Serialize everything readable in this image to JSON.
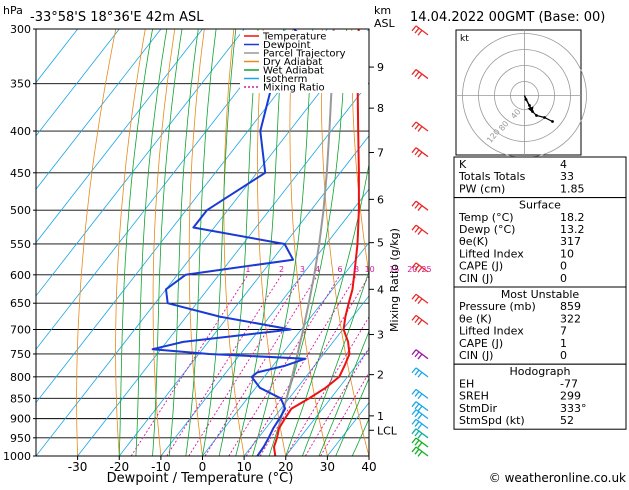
{
  "header": {
    "location": "-33°58'S  18°36'E  42m  ASL",
    "datetime": "14.04.2022  00GMT  (Base: 00)"
  },
  "credit": "© weatheronline.co.uk",
  "chart_data": {
    "type": "skew-t",
    "y_unit_left": "hPa",
    "y_unit_right": "km\nASL",
    "xlabel": "Dewpoint / Temperature (°C)",
    "mixing_ratio_label": "Mixing Ratio (g/kg)",
    "pressure_levels": [
      300,
      350,
      400,
      450,
      500,
      550,
      600,
      650,
      700,
      750,
      800,
      850,
      900,
      950,
      1000
    ],
    "x_ticks": [
      -30,
      -20,
      -10,
      0,
      10,
      20,
      30,
      40
    ],
    "xlim": [
      -40,
      40
    ],
    "ylim_hpa": [
      1000,
      300
    ],
    "km_ticks": [
      {
        "label": "9",
        "p": 334
      },
      {
        "label": "8",
        "p": 375
      },
      {
        "label": "7",
        "p": 425
      },
      {
        "label": "6",
        "p": 485
      },
      {
        "label": "5",
        "p": 548
      },
      {
        "label": "4",
        "p": 625
      },
      {
        "label": "3",
        "p": 710
      },
      {
        "label": "2",
        "p": 795
      },
      {
        "label": "1",
        "p": 893
      },
      {
        "label": "LCL",
        "p": 930
      }
    ],
    "mixing_ratio_values": [
      "1",
      "2",
      "3",
      "4",
      "6",
      "8",
      "10",
      "15",
      "20",
      "25"
    ],
    "legend": {
      "position": "top-left",
      "items": [
        {
          "name": "Temperature",
          "color": "#ee1111"
        },
        {
          "name": "Dewpoint",
          "color": "#1a3ad6"
        },
        {
          "name": "Parcel Trajectory",
          "color": "#999999"
        },
        {
          "name": "Dry Adiabat",
          "color": "#e88a1a"
        },
        {
          "name": "Wet Adiabat",
          "color": "#0fa32f"
        },
        {
          "name": "Isotherm",
          "color": "#1aa6e6"
        },
        {
          "name": "Mixing Ratio",
          "color": "#d6199c"
        }
      ]
    },
    "temperature": [
      [
        1000,
        17.5
      ],
      [
        975,
        15.5
      ],
      [
        950,
        14.5
      ],
      [
        925,
        13.2
      ],
      [
        900,
        12.8
      ],
      [
        875,
        12.5
      ],
      [
        850,
        14.8
      ],
      [
        825,
        16.8
      ],
      [
        800,
        18.0
      ],
      [
        775,
        17.2
      ],
      [
        750,
        16.2
      ],
      [
        725,
        13.6
      ],
      [
        700,
        10.2
      ],
      [
        675,
        8.2
      ],
      [
        650,
        6.5
      ],
      [
        625,
        4.8
      ],
      [
        600,
        2.5
      ],
      [
        550,
        -2.5
      ],
      [
        500,
        -8.5
      ],
      [
        450,
        -15.5
      ],
      [
        400,
        -23.5
      ],
      [
        350,
        -32.5
      ],
      [
        300,
        -42.5
      ]
    ],
    "dewpoint": [
      [
        1000,
        13.2
      ],
      [
        975,
        13.0
      ],
      [
        950,
        12.5
      ],
      [
        925,
        11.8
      ],
      [
        900,
        11.5
      ],
      [
        875,
        11.0
      ],
      [
        850,
        8.0
      ],
      [
        825,
        1.0
      ],
      [
        800,
        -3.0
      ],
      [
        790,
        -2.5
      ],
      [
        775,
        3.0
      ],
      [
        760,
        6.5
      ],
      [
        750,
        -17.5
      ],
      [
        740,
        -32.0
      ],
      [
        725,
        -26.0
      ],
      [
        700,
        -2.5
      ],
      [
        675,
        -22.0
      ],
      [
        650,
        -37.0
      ],
      [
        625,
        -40.0
      ],
      [
        600,
        -38.0
      ],
      [
        575,
        -15.0
      ],
      [
        550,
        -20.0
      ],
      [
        525,
        -45.0
      ],
      [
        500,
        -45.0
      ],
      [
        450,
        -38.0
      ],
      [
        400,
        -47.0
      ],
      [
        350,
        -53.0
      ],
      [
        325,
        -46.0
      ],
      [
        300,
        -58.0
      ]
    ],
    "parcel": [
      [
        930,
        13.3
      ],
      [
        900,
        11.8
      ],
      [
        850,
        9.4
      ],
      [
        800,
        6.7
      ],
      [
        750,
        3.7
      ],
      [
        700,
        0.5
      ],
      [
        650,
        -3.1
      ],
      [
        600,
        -7.1
      ],
      [
        550,
        -11.7
      ],
      [
        500,
        -17.0
      ],
      [
        450,
        -23.2
      ],
      [
        400,
        -30.4
      ],
      [
        350,
        -38.7
      ],
      [
        300,
        -48.5
      ]
    ],
    "wind_barbs": [
      {
        "p": 305,
        "color": "#e82a2a"
      },
      {
        "p": 345,
        "color": "#e82a2a"
      },
      {
        "p": 400,
        "color": "#e82a2a"
      },
      {
        "p": 430,
        "color": "#e82a2a"
      },
      {
        "p": 500,
        "color": "#e82a2a"
      },
      {
        "p": 535,
        "color": "#e82a2a"
      },
      {
        "p": 595,
        "color": "#e82a2a"
      },
      {
        "p": 650,
        "color": "#e82a2a"
      },
      {
        "p": 690,
        "color": "#e82a2a"
      },
      {
        "p": 760,
        "color": "#9b1ca6"
      },
      {
        "p": 800,
        "color": "#1aa6e6"
      },
      {
        "p": 850,
        "color": "#1aa6e6"
      },
      {
        "p": 880,
        "color": "#1aa6e6"
      },
      {
        "p": 900,
        "color": "#1aa6e6"
      },
      {
        "p": 925,
        "color": "#1aa6e6"
      },
      {
        "p": 950,
        "color": "#10b0a0"
      },
      {
        "p": 975,
        "color": "#10b020"
      },
      {
        "p": 1000,
        "color": "#10b020"
      }
    ]
  },
  "hodograph": {
    "unit": "kt",
    "ring_labels": [
      "40",
      "80",
      "120"
    ],
    "points": [
      [
        0,
        0
      ],
      [
        1.5,
        -4
      ],
      [
        5,
        -10
      ],
      [
        8,
        -16
      ],
      [
        12,
        -20
      ],
      [
        20,
        -22
      ],
      [
        28,
        -26
      ]
    ],
    "storm_motion": [
      [
        0,
        0
      ],
      [
        8,
        -17
      ]
    ]
  },
  "indices": {
    "basic": [
      {
        "label": "K",
        "value": "4"
      },
      {
        "label": "Totals Totals",
        "value": "33"
      },
      {
        "label": "PW (cm)",
        "value": "1.85"
      }
    ],
    "surface": {
      "title": "Surface",
      "rows": [
        {
          "label": "Temp (°C)",
          "value": "18.2"
        },
        {
          "label": "Dewp (°C)",
          "value": "13.2"
        },
        {
          "label": "θe(K)",
          "value": "317"
        },
        {
          "label": "Lifted Index",
          "value": "10"
        },
        {
          "label": "CAPE (J)",
          "value": "0"
        },
        {
          "label": "CIN (J)",
          "value": "0"
        }
      ]
    },
    "most_unstable": {
      "title": "Most Unstable",
      "rows": [
        {
          "label": "Pressure (mb)",
          "value": "859"
        },
        {
          "label": "θe (K)",
          "value": "322"
        },
        {
          "label": "Lifted Index",
          "value": "7"
        },
        {
          "label": "CAPE (J)",
          "value": "1"
        },
        {
          "label": "CIN (J)",
          "value": "0"
        }
      ]
    },
    "hodograph": {
      "title": "Hodograph",
      "rows": [
        {
          "label": "EH",
          "value": "-77"
        },
        {
          "label": "SREH",
          "value": "299"
        },
        {
          "label": "StmDir",
          "value": "333°"
        },
        {
          "label": "StmSpd (kt)",
          "value": "52"
        }
      ]
    }
  }
}
